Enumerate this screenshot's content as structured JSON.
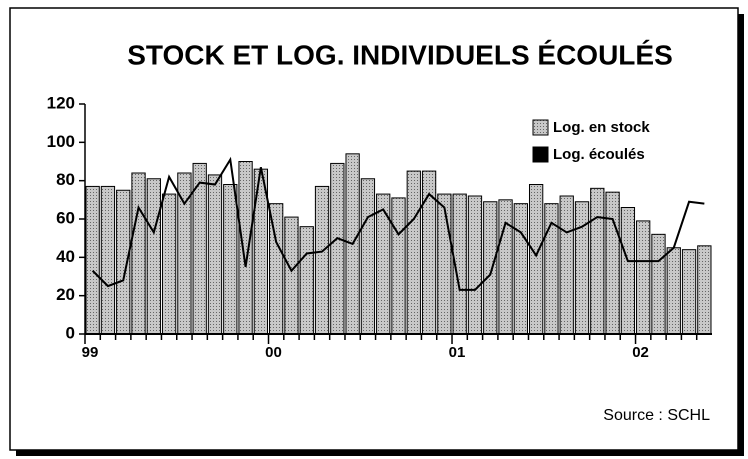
{
  "chart_data": {
    "type": "bar_line",
    "title": "STOCK ET LOG. INDIVIDUELS ÉCOULÉS",
    "source": "Source : SCHL",
    "categories": [
      "99",
      null,
      null,
      null,
      null,
      null,
      null,
      null,
      null,
      null,
      null,
      null,
      "00",
      null,
      null,
      null,
      null,
      null,
      null,
      null,
      null,
      null,
      null,
      null,
      "01",
      null,
      null,
      null,
      null,
      null,
      null,
      null,
      null,
      null,
      null,
      null,
      "02",
      null,
      null,
      null,
      null
    ],
    "series": [
      {
        "name": "Log. en stock",
        "type": "bar",
        "color": "#c8c8c8",
        "values": [
          77,
          77,
          75,
          84,
          81,
          73,
          84,
          89,
          83,
          78,
          90,
          86,
          68,
          61,
          56,
          77,
          89,
          94,
          81,
          73,
          71,
          85,
          85,
          73,
          73,
          72,
          69,
          70,
          68,
          78,
          68,
          72,
          69,
          76,
          74,
          66,
          59,
          52,
          45,
          44,
          46
        ]
      },
      {
        "name": "Log. écoulés",
        "type": "line",
        "color": "#000000",
        "values": [
          33,
          25,
          28,
          66,
          53,
          82,
          68,
          79,
          78,
          91,
          35,
          87,
          48,
          33,
          42,
          43,
          50,
          47,
          61,
          65,
          52,
          60,
          73,
          66,
          23,
          23,
          31,
          58,
          53,
          41,
          58,
          53,
          56,
          61,
          60,
          38,
          38,
          38,
          45,
          69,
          68
        ]
      }
    ],
    "ylim": [
      0,
      120
    ],
    "yticks": [
      0,
      20,
      40,
      60,
      80,
      100,
      120
    ],
    "legend": "top-right"
  }
}
